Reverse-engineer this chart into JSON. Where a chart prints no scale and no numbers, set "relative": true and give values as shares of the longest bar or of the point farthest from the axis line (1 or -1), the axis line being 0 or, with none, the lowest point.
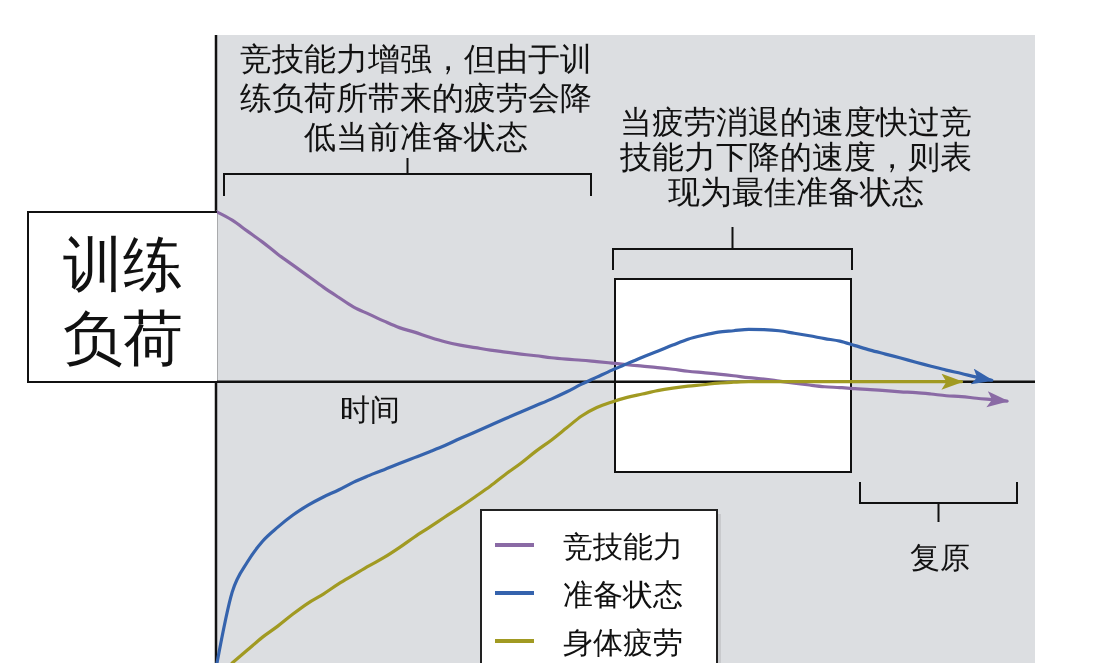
{
  "chart_data": {
    "type": "line",
    "relative": true,
    "ylabel": "训练负荷",
    "xlabel": "时间",
    "categories": [
      null,
      null,
      null,
      null,
      null,
      null,
      null,
      null,
      null,
      null,
      null,
      null,
      null,
      null,
      null,
      null,
      null,
      null,
      null,
      null,
      null,
      null,
      null,
      null,
      null,
      null,
      null,
      null,
      null,
      null,
      null,
      null,
      null,
      null,
      null,
      null,
      null,
      null,
      null,
      null,
      null,
      null,
      null,
      null,
      null,
      null,
      null,
      null,
      null,
      null,
      null,
      null,
      null
    ],
    "series": [
      {
        "name": "竞技能力",
        "color": "#8a6aa5",
        "values": [
          0.603,
          0.574,
          0.535,
          0.496,
          0.453,
          0.414,
          0.375,
          0.336,
          0.3,
          0.265,
          0.24,
          0.215,
          0.192,
          0.176,
          0.158,
          0.142,
          0.13,
          0.121,
          0.112,
          0.105,
          0.098,
          0.092,
          0.085,
          0.08,
          0.076,
          0.071,
          0.066,
          0.06,
          0.055,
          0.05,
          0.044,
          0.037,
          0.032,
          0.027,
          0.021,
          0.014,
          0.009,
          0.002,
          -0.005,
          -0.012,
          -0.018,
          -0.021,
          -0.025,
          -0.028,
          -0.032,
          -0.036,
          -0.039,
          -0.044,
          -0.05,
          -0.053,
          -0.059,
          -0.064,
          -0.069
        ]
      },
      {
        "name": "准备状态",
        "color": "#3563ad",
        "values": [
          -1,
          -0.748,
          -0.641,
          -0.567,
          -0.517,
          -0.474,
          -0.439,
          -0.41,
          -0.385,
          -0.357,
          -0.334,
          -0.313,
          -0.291,
          -0.27,
          -0.249,
          -0.227,
          -0.202,
          -0.179,
          -0.155,
          -0.131,
          -0.108,
          -0.085,
          -0.062,
          -0.037,
          -0.009,
          0.016,
          0.041,
          0.064,
          0.087,
          0.108,
          0.13,
          0.151,
          0.165,
          0.176,
          0.181,
          0.186,
          0.185,
          0.181,
          0.172,
          0.163,
          0.153,
          0.144,
          0.128,
          0.112,
          0.098,
          0.084,
          0.069,
          0.055,
          0.041,
          0.029,
          0.016,
          0.005,
          null
        ]
      },
      {
        "name": "身体疲劳",
        "color": "#a19a22",
        "values": [
          null,
          -1,
          -0.954,
          -0.908,
          -0.869,
          -0.826,
          -0.787,
          -0.755,
          -0.719,
          -0.687,
          -0.655,
          -0.625,
          -0.59,
          -0.552,
          -0.517,
          -0.481,
          -0.446,
          -0.409,
          -0.371,
          -0.329,
          -0.29,
          -0.247,
          -0.208,
          -0.165,
          -0.122,
          -0.092,
          -0.072,
          -0.056,
          -0.044,
          -0.032,
          -0.023,
          -0.016,
          -0.011,
          -0.005,
          -0.002,
          0,
          0,
          0,
          0,
          0,
          0,
          0,
          0,
          0,
          0,
          0,
          0,
          0,
          0,
          0,
          null,
          null,
          null
        ]
      }
    ],
    "legend": "bottom",
    "annotations": [
      "竞技能力增强，但由于训练负荷所带来的疲劳会降低当前准备状态",
      "当疲劳消退的速度快过竞技能力下降的速度，则表现为最佳准备状态",
      "复原"
    ]
  }
}
